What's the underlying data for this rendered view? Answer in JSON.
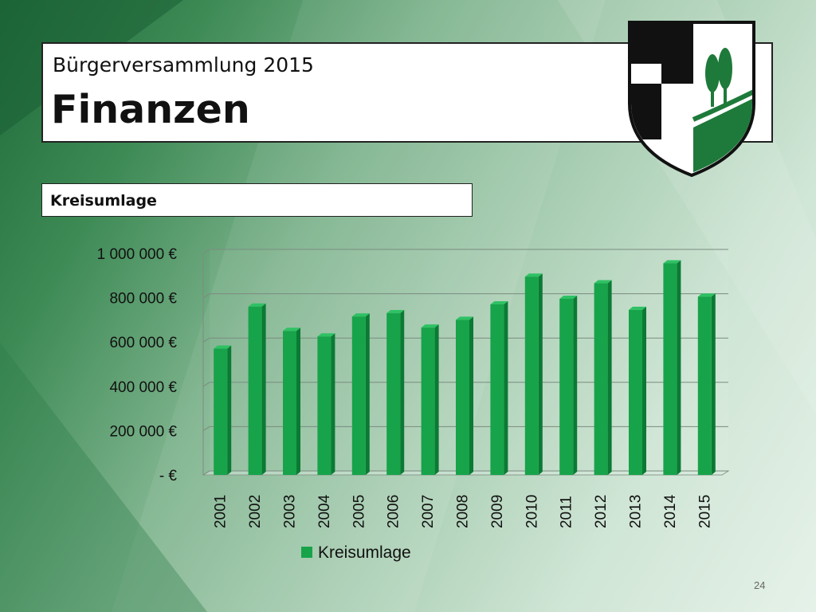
{
  "slide": {
    "subtitle": "Bürgerversammlung 2015",
    "title": "Finanzen",
    "section": "Kreisumlage",
    "page_number": "24"
  },
  "colors": {
    "bar_front": "#17a34a",
    "bar_side": "#0b7a34",
    "bar_top": "#2fc164",
    "crest_green": "#1e7a3a"
  },
  "chart_data": {
    "type": "bar",
    "categories": [
      "2001",
      "2002",
      "2003",
      "2004",
      "2005",
      "2006",
      "2007",
      "2008",
      "2009",
      "2010",
      "2011",
      "2012",
      "2013",
      "2014",
      "2015"
    ],
    "series": [
      {
        "name": "Kreisumlage",
        "values": [
          570000,
          760000,
          650000,
          625000,
          715000,
          730000,
          665000,
          700000,
          770000,
          895000,
          795000,
          865000,
          745000,
          955000,
          805000
        ]
      }
    ],
    "yticks": [
      "- €",
      "200 000 €",
      "400 000 €",
      "600 000 €",
      "800 000 €",
      "1 000 000 €"
    ],
    "ylim": [
      0,
      1000000
    ],
    "grid": true,
    "legend": "bottom"
  }
}
